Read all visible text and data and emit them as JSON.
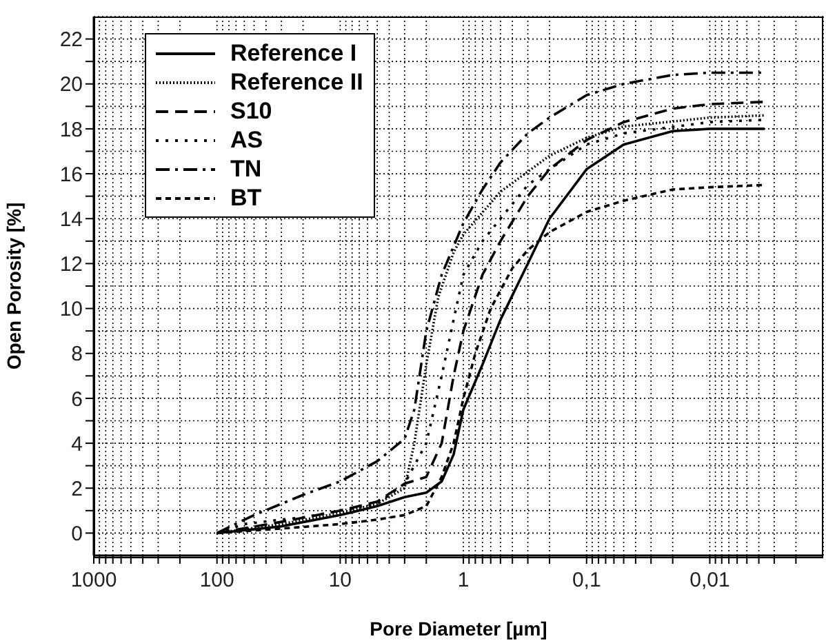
{
  "chart_data": {
    "type": "line",
    "xlabel": "Pore Diameter [µm]",
    "ylabel": "Open Porosity [%]",
    "log": "x",
    "grid": true,
    "legend": "top left",
    "marker": "none",
    "xlim": [
      1000,
      0.0012
    ],
    "xticks": [
      1000,
      {
        "value": 900,
        "label": null
      },
      {
        "value": 800,
        "label": null
      },
      {
        "value": 700,
        "label": null
      },
      {
        "value": 600,
        "label": null
      },
      {
        "value": 500,
        "label": null
      },
      {
        "value": 400,
        "label": null
      },
      {
        "value": 300,
        "label": null
      },
      {
        "value": 200,
        "label": null
      },
      100,
      {
        "value": 90,
        "label": null
      },
      {
        "value": 80,
        "label": null
      },
      {
        "value": 70,
        "label": null
      },
      {
        "value": 60,
        "label": null
      },
      {
        "value": 50,
        "label": null
      },
      {
        "value": 40,
        "label": null
      },
      {
        "value": 30,
        "label": null
      },
      {
        "value": 20,
        "label": null
      },
      10,
      {
        "value": 9,
        "label": null
      },
      {
        "value": 8,
        "label": null
      },
      {
        "value": 7,
        "label": null
      },
      {
        "value": 6,
        "label": null
      },
      {
        "value": 5,
        "label": null
      },
      {
        "value": 4,
        "label": null
      },
      {
        "value": 3,
        "label": null
      },
      {
        "value": 2,
        "label": null
      },
      1,
      {
        "value": 0.9,
        "label": null
      },
      {
        "value": 0.8,
        "label": null
      },
      {
        "value": 0.7,
        "label": null
      },
      {
        "value": 0.6,
        "label": null
      },
      {
        "value": 0.5,
        "label": null
      },
      {
        "value": 0.4,
        "label": null
      },
      {
        "value": 0.3,
        "label": null
      },
      {
        "value": 0.2,
        "label": null
      },
      {
        "value": 0.1,
        "label": "0,1"
      },
      {
        "value": 0.09,
        "label": null
      },
      {
        "value": 0.08,
        "label": null
      },
      {
        "value": 0.07,
        "label": null
      },
      {
        "value": 0.06,
        "label": null
      },
      {
        "value": 0.05,
        "label": null
      },
      {
        "value": 0.04,
        "label": null
      },
      {
        "value": 0.03,
        "label": null
      },
      {
        "value": 0.02,
        "label": null
      },
      {
        "value": 0.01,
        "label": "0,01"
      },
      {
        "value": 0.009,
        "label": null
      },
      {
        "value": 0.008,
        "label": null
      },
      {
        "value": 0.007,
        "label": null
      },
      {
        "value": 0.006,
        "label": null
      },
      {
        "value": 0.005,
        "label": null
      },
      {
        "value": 0.004,
        "label": null
      },
      {
        "value": 0.003,
        "label": null
      },
      {
        "value": 0.002,
        "label": null
      }
    ],
    "ylim": [
      -1,
      23
    ],
    "yticks": [
      0,
      {
        "value": 1,
        "label": null
      },
      2,
      {
        "value": 3,
        "label": null
      },
      4,
      {
        "value": 5,
        "label": null
      },
      6,
      {
        "value": 7,
        "label": null
      },
      8,
      {
        "value": 9,
        "label": null
      },
      10,
      {
        "value": 11,
        "label": null
      },
      12,
      {
        "value": 13,
        "label": null
      },
      14,
      {
        "value": 15,
        "label": null
      },
      16,
      {
        "value": 17,
        "label": null
      },
      18,
      {
        "value": 19,
        "label": null
      },
      20,
      {
        "value": 21,
        "label": null
      },
      22
    ],
    "series": [
      {
        "name": "Reference I",
        "color": "#000000",
        "line_style": "solid",
        "x": [
          100,
          30,
          10,
          5,
          3,
          2,
          1.5,
          1.2,
          1,
          0.7,
          0.5,
          0.3,
          0.2,
          0.1,
          0.05,
          0.02,
          0.01,
          0.0036
        ],
        "values": [
          0,
          0.3,
          0.8,
          1.2,
          1.6,
          1.8,
          2.3,
          3.5,
          5.5,
          7.5,
          9.5,
          12,
          14,
          16.2,
          17.3,
          17.9,
          18,
          18
        ]
      },
      {
        "name": "Reference II",
        "color": "#000000",
        "line_style": "dotted",
        "x": [
          100,
          30,
          10,
          5,
          3,
          2.5,
          2,
          1.6,
          1.2,
          1,
          0.5,
          0.2,
          0.1,
          0.05,
          0.01,
          0.0036
        ],
        "values": [
          0,
          0.4,
          0.9,
          1.3,
          2,
          4,
          7.5,
          10.5,
          12.5,
          13.3,
          15.2,
          16.8,
          17.6,
          18.1,
          18.5,
          18.6
        ]
      },
      {
        "name": "S10",
        "color": "#000000",
        "line_style": "dashed",
        "x": [
          100,
          30,
          10,
          5,
          3,
          2,
          1.5,
          1.2,
          1,
          0.7,
          0.5,
          0.3,
          0.2,
          0.1,
          0.05,
          0.02,
          0.01,
          0.0036
        ],
        "values": [
          0,
          0.5,
          1,
          1.4,
          2.2,
          2.5,
          4,
          7,
          9,
          11.5,
          13,
          15,
          16.2,
          17.5,
          18.3,
          18.9,
          19.1,
          19.2
        ]
      },
      {
        "name": "AS",
        "color": "#000000",
        "line_style": "loosely dotted",
        "x": [
          100,
          60,
          30,
          20,
          10,
          5,
          3,
          2,
          1.5,
          1.2,
          1,
          0.7,
          0.5,
          0.3,
          0.2,
          0.1,
          0.05,
          0.01,
          0.0036
        ],
        "values": [
          0,
          0.4,
          0.6,
          0.7,
          1,
          1.3,
          2.2,
          4,
          7,
          9.5,
          11.5,
          13,
          14,
          15.5,
          16.2,
          17.3,
          17.8,
          18.3,
          18.4
        ]
      },
      {
        "name": "TN",
        "color": "#000000",
        "line_style": "dashdot",
        "x": [
          100,
          50,
          20,
          10,
          5,
          3,
          2.5,
          2,
          1.5,
          1,
          0.7,
          0.5,
          0.3,
          0.2,
          0.1,
          0.05,
          0.02,
          0.01,
          0.0036
        ],
        "values": [
          0,
          0.8,
          1.7,
          2.3,
          3.2,
          4.2,
          5.5,
          9,
          11.5,
          13.8,
          15.3,
          16.5,
          17.8,
          18.5,
          19.5,
          20,
          20.4,
          20.5,
          20.5
        ]
      },
      {
        "name": "BT",
        "color": "#000000",
        "line_style": "short dashed",
        "x": [
          100,
          30,
          10,
          5,
          3,
          2,
          1.5,
          1.2,
          1,
          0.8,
          0.6,
          0.4,
          0.3,
          0.2,
          0.1,
          0.05,
          0.02,
          0.01,
          0.0036
        ],
        "values": [
          0,
          0.2,
          0.4,
          0.6,
          0.8,
          1.2,
          2.5,
          4,
          6,
          8,
          10,
          11.8,
          12.6,
          13.4,
          14.3,
          14.8,
          15.3,
          15.4,
          15.5
        ]
      }
    ]
  }
}
